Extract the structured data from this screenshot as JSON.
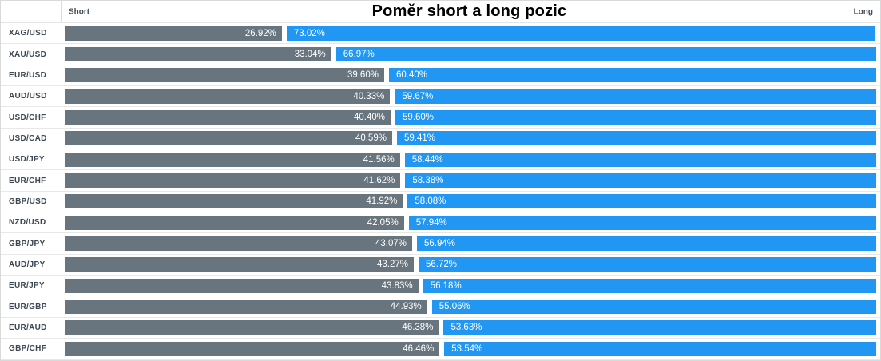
{
  "title": "Poměr short a long pozic",
  "header": {
    "short_label": "Short",
    "long_label": "Long"
  },
  "colors": {
    "short_bar": "#68747e",
    "long_bar": "#2196f3",
    "value_text": "#ffffff",
    "pair_label_text": "#3b4752",
    "header_label_text": "#424d57",
    "row_separator": "#e8e8e8",
    "outer_border": "#d9d9d9"
  },
  "chart_data": {
    "type": "bar",
    "orientation": "horizontal",
    "stacked": true,
    "title": "Poměr short a long pozic",
    "xlabel": "",
    "ylabel": "",
    "xlim": [
      0,
      100
    ],
    "grid": false,
    "legend_position": "top-corners (Short left, Long right)",
    "categories": [
      "XAG/USD",
      "XAU/USD",
      "EUR/USD",
      "AUD/USD",
      "USD/CHF",
      "USD/CAD",
      "USD/JPY",
      "EUR/CHF",
      "GBP/USD",
      "NZD/USD",
      "GBP/JPY",
      "AUD/JPY",
      "EUR/JPY",
      "EUR/GBP",
      "EUR/AUD",
      "GBP/CHF"
    ],
    "series": [
      {
        "name": "Short",
        "color": "#68747e",
        "values": [
          26.92,
          33.04,
          39.6,
          40.33,
          40.4,
          40.59,
          41.56,
          41.62,
          41.92,
          42.05,
          43.07,
          43.27,
          43.83,
          44.93,
          46.38,
          46.46
        ],
        "labels": [
          "26.92%",
          "33.04%",
          "39.60%",
          "40.33%",
          "40.40%",
          "40.59%",
          "41.56%",
          "41.62%",
          "41.92%",
          "42.05%",
          "43.07%",
          "43.27%",
          "43.83%",
          "44.93%",
          "46.38%",
          "46.46%"
        ]
      },
      {
        "name": "Long",
        "color": "#2196f3",
        "values": [
          73.02,
          66.97,
          60.4,
          59.67,
          59.6,
          59.41,
          58.44,
          58.38,
          58.08,
          57.94,
          56.94,
          56.72,
          56.18,
          55.06,
          53.63,
          53.54
        ],
        "labels": [
          "73.02%",
          "66.97%",
          "60.40%",
          "59.67%",
          "59.60%",
          "59.41%",
          "58.44%",
          "58.38%",
          "58.08%",
          "57.94%",
          "56.94%",
          "56.72%",
          "56.18%",
          "55.06%",
          "53.63%",
          "53.54%"
        ]
      }
    ]
  }
}
